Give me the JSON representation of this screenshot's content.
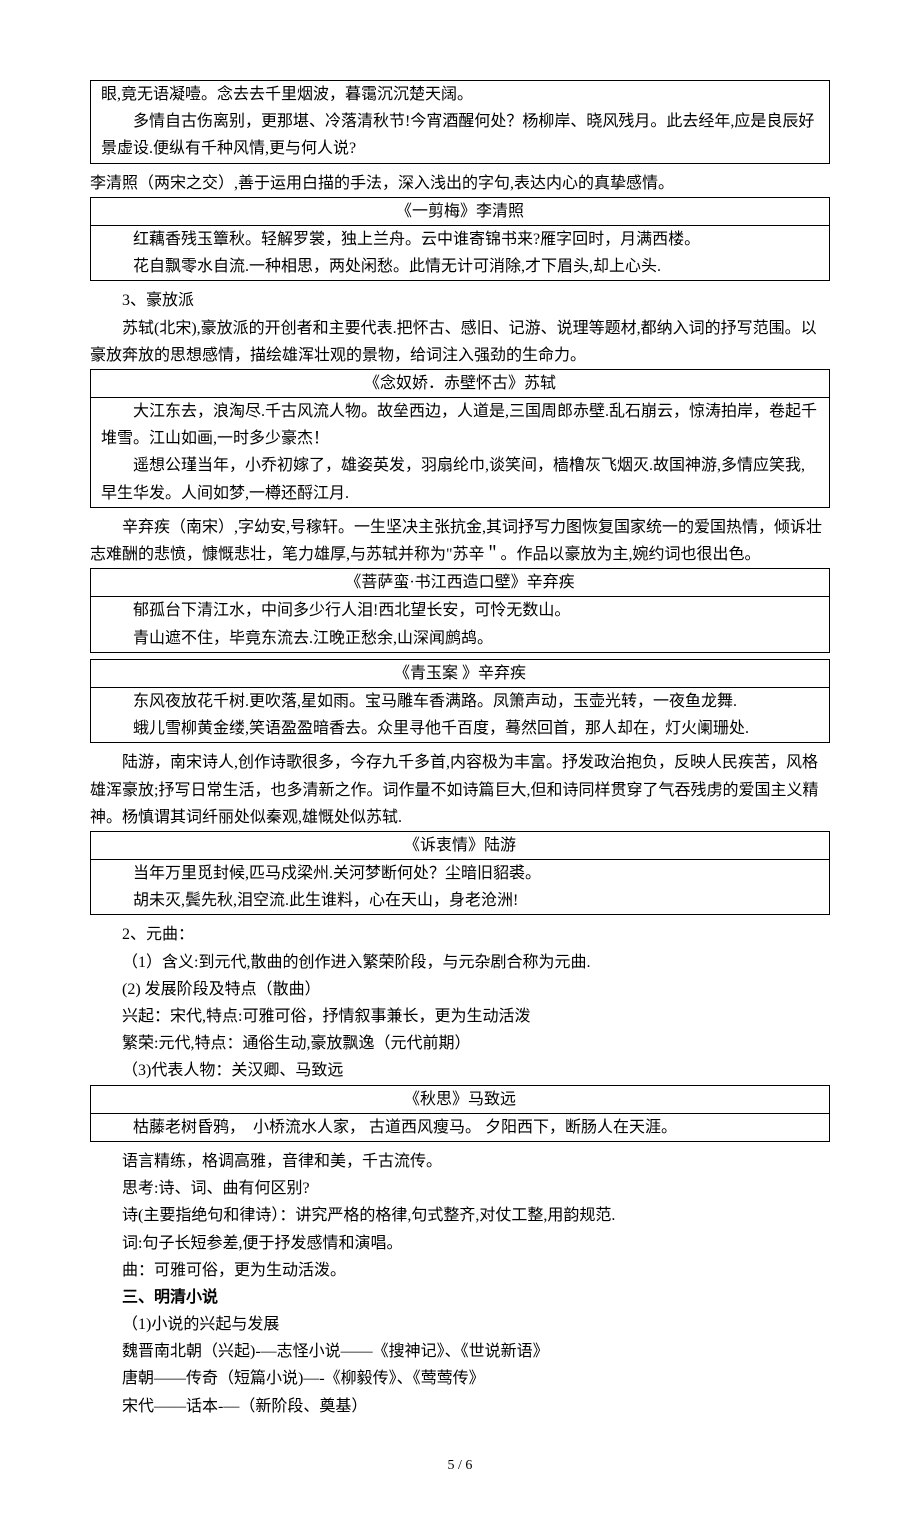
{
  "box1": {
    "l1": "眼,竟无语凝噎。念去去千里烟波，暮霭沉沉楚天阔。",
    "l2": "多情自古伤离别，更那堪、冷落清秋节!今宵酒醒何处？杨柳岸、晓风残月。此去经年,应是良辰好景虚设.便纵有千种风情,更与何人说?"
  },
  "p1": "李清照（两宋之交）,善于运用白描的手法，深入浅出的字句,表达内心的真挚感情。",
  "box2": {
    "title": "《一剪梅》李清照",
    "l1": "红藕香残玉簟秋。轻解罗裳，独上兰舟。云中谁寄锦书来?雁字回时，月满西楼。",
    "l2": "花自飘零水自流.一种相思，两处闲愁。此情无计可消除,才下眉头,却上心头."
  },
  "p2": "3、豪放派",
  "p3": "苏轼(北宋),豪放派的开创者和主要代表.把怀古、感旧、记游、说理等题材,都纳入词的抒写范围。以豪放奔放的思想感情，描绘雄浑壮观的景物，给词注入强劲的生命力。",
  "box3": {
    "title": "《念奴娇．赤壁怀古》苏轼",
    "l1": "大江东去，浪淘尽.千古风流人物。故垒西边，人道是,三国周郎赤壁.乱石崩云，惊涛拍岸，卷起千堆雪。江山如画,一时多少豪杰！",
    "l2": "遥想公瑾当年，小乔初嫁了，雄姿英发，羽扇纶巾,谈笑间，樯橹灰飞烟灭.故国神游,多情应笑我,早生华发。人间如梦,一樽还酹江月."
  },
  "p4": "辛弃疾（南宋）,字幼安,号稼轩。一生坚决主张抗金,其词抒写力图恢复国家统一的爱国热情，倾诉壮志难酬的悲愤，慷慨悲壮，笔力雄厚,与苏轼并称为\"苏辛＂。作品以豪放为主,婉约词也很出色。",
  "box4": {
    "title": "《菩萨蛮·书江西造口壁》辛弃疾",
    "l1": "郁孤台下清江水，中间多少行人泪!西北望长安，可怜无数山。",
    "l2": "青山遮不住，毕竟东流去.江晚正愁余,山深闻鹧鸪。"
  },
  "box5": {
    "title": "《青玉案 》辛弃疾",
    "l1": "东风夜放花千树.更吹落,星如雨。宝马雕车香满路。凤箫声动，玉壶光转，一夜鱼龙舞.",
    "l2": "蛾儿雪柳黄金缕,笑语盈盈暗香去。众里寻他千百度，蓦然回首，那人却在，灯火阑珊处."
  },
  "p5": "陆游，南宋诗人,创作诗歌很多，今存九千多首,内容极为丰富。抒发政治抱负，反映人民疾苦，风格雄浑豪放;抒写日常生活，也多清新之作。词作量不如诗篇巨大,但和诗同样贯穿了气吞残虏的爱国主义精神。杨慎谓其词纤丽处似秦观,雄慨处似苏轼.",
  "box6": {
    "title": "《诉衷情》陆游",
    "l1": "当年万里觅封候,匹马戍梁州.关河梦断何处？尘暗旧貂裘。",
    "l2": "胡未灭,鬓先秋,泪空流.此生谁料，心在天山，身老沧洲!"
  },
  "p6": "2、元曲：",
  "p7": "（1）含义:到元代,散曲的创作进入繁荣阶段，与元杂剧合称为元曲.",
  "p8": "(2) 发展阶段及特点（散曲）",
  "p9": "兴起：宋代,特点:可雅可俗，抒情叙事兼长，更为生动活泼",
  "p10": "繁荣:元代,特点：通俗生动,豪放飘逸（元代前期）",
  "p11": "（3)代表人物：关汉卿、马致远",
  "box7": {
    "title": "《秋思》马致远",
    "l1": "枯藤老树昏鸦，　小桥流水人家，  古道西风瘦马。 夕阳西下，断肠人在天涯。"
  },
  "p12": "语言精练，格调高雅，音律和美，千古流传。",
  "p13": "思考:诗、词、曲有何区别?",
  "p14": "诗(主要指绝句和律诗）：讲究严格的格律,句式整齐,对仗工整,用韵规范.",
  "p15": "词:句子长短参差,便于抒发感情和演唱。",
  "p16": "曲：可雅可俗，更为生动活泼。",
  "p17": "三、明清小说",
  "p18": "（1)小说的兴起与发展",
  "p19": "魏晋南北朝（兴起)-—志怪小说——《搜神记》、《世说新语》",
  "p20": "唐朝——传奇（短篇小说)—-《柳毅传》、《莺莺传》",
  "p21": "宋代——话本-—（新阶段、奠基）",
  "footer": "5 / 6"
}
